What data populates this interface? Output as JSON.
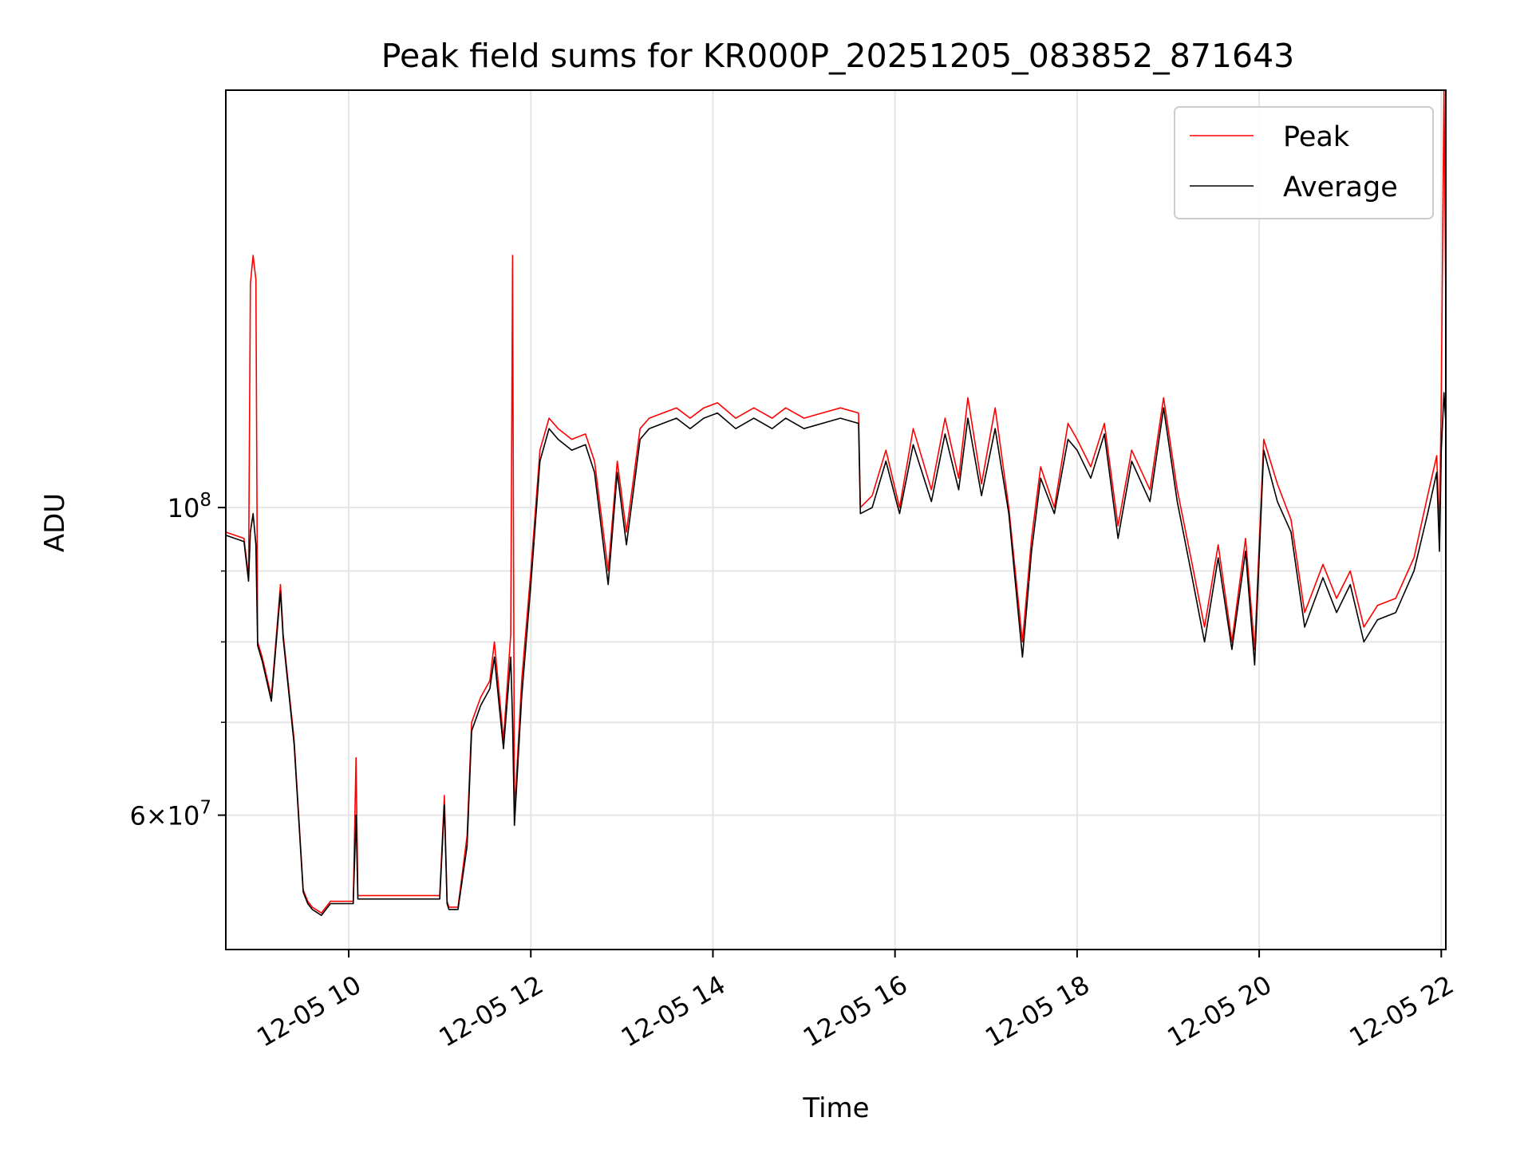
{
  "chart_data": {
    "type": "line",
    "title": "Peak field sums for KR000P_20251205_083852_871643",
    "xlabel": "Time",
    "ylabel": "ADU",
    "yscale": "log",
    "grid": true,
    "legend_position": "top-right",
    "xlim_hours": [
      8.65,
      22.05
    ],
    "ylim": [
      48000000,
      200000000
    ],
    "x_ticks": [
      {
        "hour": 10,
        "label": "12-05 10"
      },
      {
        "hour": 12,
        "label": "12-05 12"
      },
      {
        "hour": 14,
        "label": "12-05 14"
      },
      {
        "hour": 16,
        "label": "12-05 16"
      },
      {
        "hour": 18,
        "label": "12-05 18"
      },
      {
        "hour": 20,
        "label": "12-05 20"
      },
      {
        "hour": 22,
        "label": "12-05 22"
      }
    ],
    "y_major_ticks": [
      {
        "value": 60000000,
        "mant": "6",
        "exp": "7"
      },
      {
        "value": 100000000,
        "mant": "",
        "exp": "8"
      }
    ],
    "y_minor_ticks": [
      70000000,
      80000000,
      90000000
    ],
    "series": [
      {
        "name": "Peak",
        "color": "#ff0000",
        "x": [
          8.65,
          8.85,
          8.9,
          8.92,
          8.95,
          8.98,
          9.0,
          9.05,
          9.15,
          9.25,
          9.28,
          9.4,
          9.5,
          9.55,
          9.6,
          9.7,
          9.75,
          9.8,
          10.05,
          10.08,
          10.1,
          10.12,
          10.4,
          10.7,
          11.0,
          11.05,
          11.08,
          11.1,
          11.2,
          11.3,
          11.35,
          11.45,
          11.55,
          11.6,
          11.7,
          11.78,
          11.8,
          11.82,
          11.9,
          12.0,
          12.1,
          12.2,
          12.3,
          12.45,
          12.6,
          12.7,
          12.85,
          12.95,
          13.05,
          13.2,
          13.3,
          13.45,
          13.6,
          13.75,
          13.9,
          14.05,
          14.25,
          14.45,
          14.65,
          14.8,
          15.0,
          15.2,
          15.4,
          15.6,
          15.62,
          15.75,
          15.9,
          16.05,
          16.2,
          16.4,
          16.55,
          16.7,
          16.8,
          16.95,
          17.1,
          17.25,
          17.4,
          17.5,
          17.6,
          17.75,
          17.9,
          18.0,
          18.15,
          18.3,
          18.45,
          18.6,
          18.8,
          18.95,
          19.1,
          19.25,
          19.4,
          19.55,
          19.7,
          19.85,
          19.95,
          20.05,
          20.2,
          20.35,
          20.5,
          20.7,
          20.85,
          21.0,
          21.15,
          21.3,
          21.5,
          21.7,
          21.85,
          21.95,
          21.98,
          22.0,
          22.03,
          22.05
        ],
        "values": [
          96000000,
          95000000,
          89000000,
          145000000,
          152000000,
          146000000,
          80000000,
          78000000,
          73000000,
          88000000,
          81000000,
          68000000,
          53000000,
          52000000,
          51500000,
          51000000,
          51500000,
          52000000,
          52000000,
          66000000,
          52500000,
          52500000,
          52500000,
          52500000,
          52500000,
          62000000,
          52000000,
          51500000,
          51500000,
          58000000,
          70000000,
          73000000,
          75000000,
          80000000,
          68000000,
          81000000,
          152000000,
          60000000,
          75000000,
          90000000,
          110000000,
          116000000,
          114000000,
          112000000,
          113000000,
          108000000,
          90000000,
          108000000,
          96000000,
          114000000,
          116000000,
          117000000,
          118000000,
          116000000,
          118000000,
          119000000,
          116000000,
          118000000,
          116000000,
          118000000,
          116000000,
          117000000,
          118000000,
          117000000,
          100000000,
          102000000,
          110000000,
          100000000,
          114000000,
          103000000,
          116000000,
          105000000,
          120000000,
          104000000,
          118000000,
          100000000,
          80000000,
          95000000,
          107000000,
          100000000,
          115000000,
          112000000,
          107000000,
          115000000,
          97000000,
          110000000,
          103000000,
          120000000,
          103000000,
          92000000,
          82000000,
          94000000,
          80000000,
          95000000,
          79000000,
          112000000,
          104000000,
          98000000,
          84000000,
          91000000,
          86000000,
          90000000,
          82000000,
          85000000,
          86000000,
          92000000,
          102000000,
          109000000,
          96000000,
          120000000,
          200000000,
          140000000
        ]
      },
      {
        "name": "Average",
        "color": "#000000",
        "x": [
          8.65,
          8.85,
          8.9,
          8.92,
          8.95,
          8.98,
          9.0,
          9.05,
          9.15,
          9.25,
          9.28,
          9.4,
          9.5,
          9.55,
          9.6,
          9.7,
          9.75,
          9.8,
          10.05,
          10.08,
          10.1,
          10.12,
          10.4,
          10.7,
          11.0,
          11.05,
          11.08,
          11.1,
          11.2,
          11.3,
          11.35,
          11.45,
          11.55,
          11.6,
          11.7,
          11.78,
          11.8,
          11.82,
          11.9,
          12.0,
          12.1,
          12.2,
          12.3,
          12.45,
          12.6,
          12.7,
          12.85,
          12.95,
          13.05,
          13.2,
          13.3,
          13.45,
          13.6,
          13.75,
          13.9,
          14.05,
          14.25,
          14.45,
          14.65,
          14.8,
          15.0,
          15.2,
          15.4,
          15.6,
          15.62,
          15.75,
          15.9,
          16.05,
          16.2,
          16.4,
          16.55,
          16.7,
          16.8,
          16.95,
          17.1,
          17.25,
          17.4,
          17.5,
          17.6,
          17.75,
          17.9,
          18.0,
          18.15,
          18.3,
          18.45,
          18.6,
          18.8,
          18.95,
          19.1,
          19.25,
          19.4,
          19.55,
          19.7,
          19.85,
          19.95,
          20.05,
          20.2,
          20.35,
          20.5,
          20.7,
          20.85,
          21.0,
          21.15,
          21.3,
          21.5,
          21.7,
          21.85,
          21.95,
          21.98,
          22.0,
          22.03,
          22.05
        ],
        "values": [
          95500000,
          94500000,
          88500000,
          96000000,
          99000000,
          94000000,
          79500000,
          77500000,
          72500000,
          87000000,
          80500000,
          67500000,
          52800000,
          51800000,
          51300000,
          50800000,
          51300000,
          51800000,
          51800000,
          60000000,
          52200000,
          52200000,
          52200000,
          52200000,
          52200000,
          61000000,
          51800000,
          51300000,
          51300000,
          57000000,
          69000000,
          72000000,
          74000000,
          78000000,
          67000000,
          78000000,
          70000000,
          59000000,
          73000000,
          88000000,
          108000000,
          114000000,
          112000000,
          110000000,
          111000000,
          106000000,
          88000000,
          106000000,
          94000000,
          112000000,
          114000000,
          115000000,
          116000000,
          114000000,
          116000000,
          117000000,
          114000000,
          116000000,
          114000000,
          116000000,
          114000000,
          115000000,
          116000000,
          115000000,
          99000000,
          100000000,
          108000000,
          99000000,
          111000000,
          101000000,
          113000000,
          103000000,
          116000000,
          102000000,
          114000000,
          99000000,
          78000000,
          93000000,
          105000000,
          99000000,
          112000000,
          110000000,
          105000000,
          113000000,
          95000000,
          108000000,
          101000000,
          118000000,
          101000000,
          90000000,
          80000000,
          92000000,
          79000000,
          93000000,
          77000000,
          110000000,
          101000000,
          96000000,
          82000000,
          89000000,
          84000000,
          88000000,
          80000000,
          83000000,
          84000000,
          90000000,
          99000000,
          106000000,
          93000000,
          110000000,
          121000000,
          115000000
        ]
      }
    ]
  }
}
